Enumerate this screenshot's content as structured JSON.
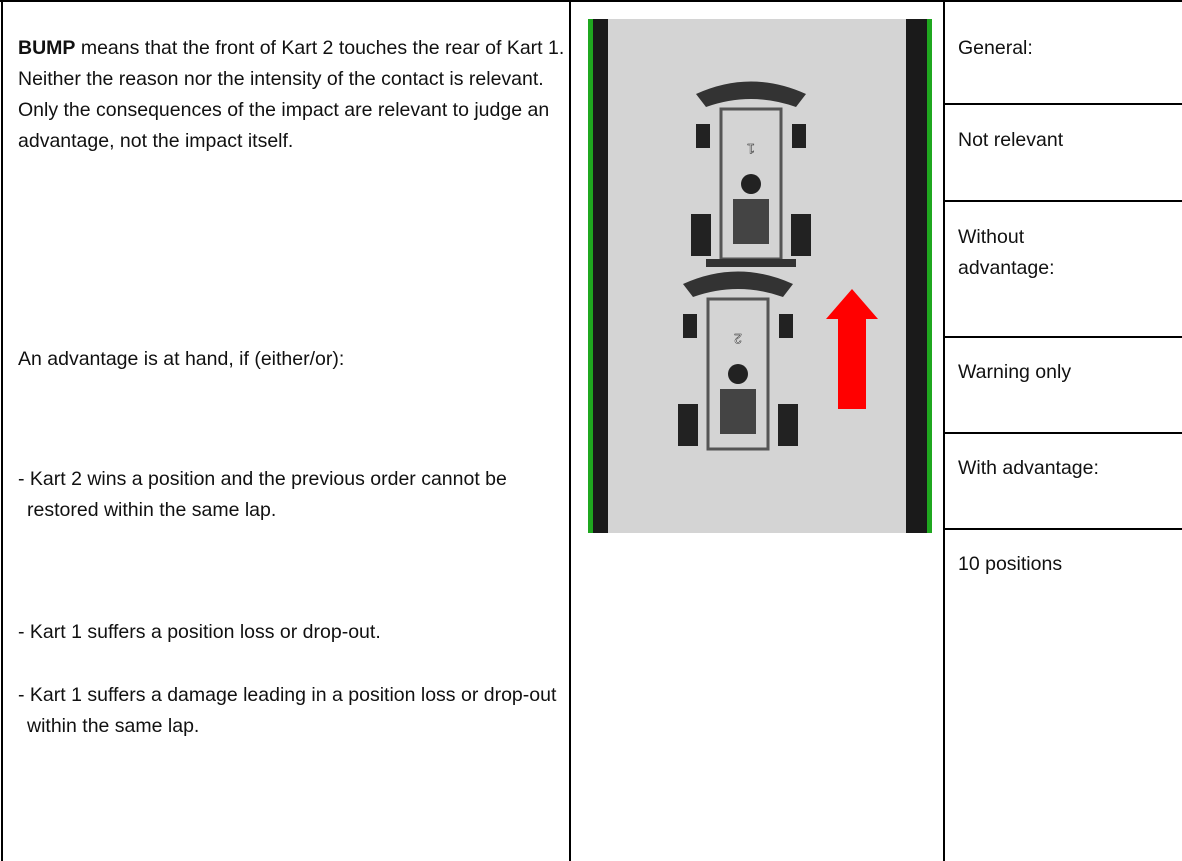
{
  "left": {
    "intro_bold": "BUMP",
    "intro_rest": " means that the front of Kart 2 touches the rear of Kart 1. Neither the reason nor the intensity of the contact is relevant. Only the consequences of the impact are relevant to judge an advantage, not the impact itself.",
    "advantage_intro": "An advantage is at hand, if (either/or):",
    "conditions": [
      "- Kart 2 wins a position and the previous order cannot be restored within the same lap.",
      "- Kart 1 suffers a position loss or drop-out.",
      "- Kart 1 suffers a damage leading in a position loss or drop-out within the same lap."
    ]
  },
  "figure": {
    "kart_labels": [
      "1",
      "2"
    ]
  },
  "right": {
    "rows": [
      "General:",
      "Not relevant",
      "Without advantage:",
      "Warning only",
      "With advantage:",
      "10 positions"
    ]
  }
}
